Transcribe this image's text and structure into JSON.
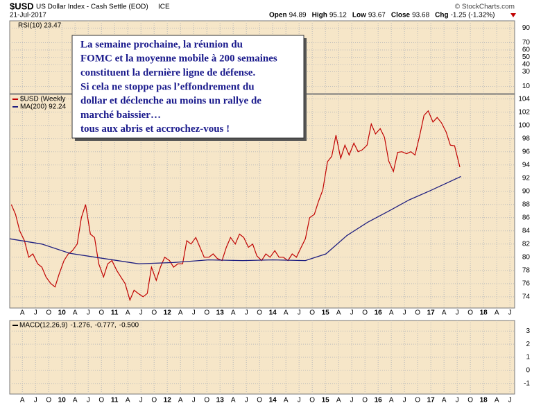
{
  "header": {
    "symbol": "$USD",
    "name": "US Dollar Index - Cash Settle (EOD)",
    "exchange": "ICE",
    "date": "21-Jul-2017",
    "watermark": "© StockCharts.com",
    "quote": [
      {
        "label": "Open",
        "value": 94.89
      },
      {
        "label": "High",
        "value": 95.12
      },
      {
        "label": "Low",
        "value": 93.67
      },
      {
        "label": "Close",
        "value": 93.68
      },
      {
        "label": "Chg",
        "value": "-1.25 (-1.32%)"
      }
    ]
  },
  "rsi": {
    "label": "RSI(10) 23.47",
    "ylim": [
      0,
      100
    ],
    "yticks": [
      10,
      30,
      40,
      50,
      60,
      70,
      90
    ]
  },
  "macd": {
    "labels": [
      {
        "text": "MACD(12,26,9)",
        "color": "#000000"
      },
      {
        "text": "-1.276,",
        "color": "#000000"
      },
      {
        "text": "-0.777,",
        "color": "#cc0000"
      },
      {
        "text": "-0.500",
        "color": "#888888"
      }
    ],
    "ylim": [
      -1.81,
      3.81
    ],
    "yticks": [
      -1,
      0,
      1,
      2,
      3
    ]
  },
  "annotation": [
    "La semaine prochaine, la réunion du",
    "FOMC et la moyenne mobile à 200 semaines",
    "constituent la dernière ligne de défense.",
    "Si cela ne stoppe pas l’effondrement du",
    "dollar et déclenche au moins un rallye de",
    "marché baissier…",
    "tous aux abris et accrochez-vous !"
  ],
  "chart_data": {
    "type": "line",
    "xlim": [
      2009.01,
      2018.59
    ],
    "ylim": [
      72.3,
      104.7
    ],
    "grid": true,
    "yticks": [
      74,
      76,
      78,
      80,
      82,
      84,
      86,
      88,
      90,
      92,
      94,
      96,
      98,
      100,
      102,
      104
    ],
    "xticks": [
      {
        "value": 2009.25,
        "label": "A"
      },
      {
        "value": 2009.5,
        "label": "J"
      },
      {
        "value": 2009.75,
        "label": "O"
      },
      {
        "value": 2010,
        "label": "10"
      },
      {
        "value": 2010.25,
        "label": "A"
      },
      {
        "value": 2010.5,
        "label": "J"
      },
      {
        "value": 2010.75,
        "label": "O"
      },
      {
        "value": 2011,
        "label": "11"
      },
      {
        "value": 2011.25,
        "label": "A"
      },
      {
        "value": 2011.5,
        "label": "J"
      },
      {
        "value": 2011.75,
        "label": "O"
      },
      {
        "value": 2012,
        "label": "12"
      },
      {
        "value": 2012.25,
        "label": "A"
      },
      {
        "value": 2012.5,
        "label": "J"
      },
      {
        "value": 2012.75,
        "label": "O"
      },
      {
        "value": 2013,
        "label": "13"
      },
      {
        "value": 2013.25,
        "label": "A"
      },
      {
        "value": 2013.5,
        "label": "J"
      },
      {
        "value": 2013.75,
        "label": "O"
      },
      {
        "value": 2014,
        "label": "14"
      },
      {
        "value": 2014.25,
        "label": "A"
      },
      {
        "value": 2014.5,
        "label": "J"
      },
      {
        "value": 2014.75,
        "label": "O"
      },
      {
        "value": 2015,
        "label": "15"
      },
      {
        "value": 2015.25,
        "label": "A"
      },
      {
        "value": 2015.5,
        "label": "J"
      },
      {
        "value": 2015.75,
        "label": "O"
      },
      {
        "value": 2016,
        "label": "16"
      },
      {
        "value": 2016.25,
        "label": "A"
      },
      {
        "value": 2016.5,
        "label": "J"
      },
      {
        "value": 2016.75,
        "label": "O"
      },
      {
        "value": 2017,
        "label": "17"
      },
      {
        "value": 2017.25,
        "label": "A"
      },
      {
        "value": 2017.5,
        "label": "J"
      },
      {
        "value": 2017.75,
        "label": "O"
      },
      {
        "value": 2018,
        "label": "18"
      },
      {
        "value": 2018.25,
        "label": "A"
      },
      {
        "value": 2018.5,
        "label": "J"
      }
    ],
    "series": [
      {
        "name": "$USD (Weekly",
        "color": "#c00000",
        "x": [
          2009.04,
          2009.12,
          2009.2,
          2009.29,
          2009.37,
          2009.45,
          2009.54,
          2009.62,
          2009.7,
          2009.79,
          2009.87,
          2009.95,
          2010.04,
          2010.12,
          2010.2,
          2010.29,
          2010.37,
          2010.45,
          2010.54,
          2010.62,
          2010.7,
          2010.79,
          2010.87,
          2010.95,
          2011.04,
          2011.12,
          2011.2,
          2011.29,
          2011.37,
          2011.45,
          2011.54,
          2011.62,
          2011.7,
          2011.79,
          2011.87,
          2011.95,
          2012.04,
          2012.12,
          2012.2,
          2012.29,
          2012.37,
          2012.45,
          2012.54,
          2012.62,
          2012.7,
          2012.79,
          2012.87,
          2012.95,
          2013.04,
          2013.12,
          2013.2,
          2013.29,
          2013.37,
          2013.45,
          2013.54,
          2013.62,
          2013.7,
          2013.79,
          2013.87,
          2013.95,
          2014.04,
          2014.12,
          2014.2,
          2014.29,
          2014.37,
          2014.45,
          2014.54,
          2014.62,
          2014.7,
          2014.79,
          2014.87,
          2014.95,
          2015.04,
          2015.12,
          2015.2,
          2015.29,
          2015.37,
          2015.45,
          2015.54,
          2015.62,
          2015.7,
          2015.79,
          2015.87,
          2015.95,
          2016.04,
          2016.12,
          2016.2,
          2016.29,
          2016.37,
          2016.45,
          2016.54,
          2016.62,
          2016.7,
          2016.79,
          2016.87,
          2016.95,
          2017.04,
          2017.12,
          2017.2,
          2017.29,
          2017.37,
          2017.45,
          2017.55
        ],
        "values": [
          88.0,
          86.5,
          84.0,
          82.5,
          80.0,
          80.5,
          79.0,
          78.5,
          77.0,
          76.0,
          75.5,
          77.5,
          79.5,
          80.5,
          81.0,
          82.0,
          86.0,
          88.0,
          83.5,
          83.0,
          79.0,
          77.0,
          79.0,
          79.5,
          78.0,
          77.0,
          76.0,
          73.5,
          75.0,
          74.5,
          74.0,
          74.5,
          78.5,
          76.5,
          78.5,
          80.0,
          79.5,
          78.5,
          79.0,
          79.0,
          82.5,
          82.0,
          83.0,
          81.5,
          80.0,
          80.0,
          80.5,
          79.8,
          79.5,
          81.5,
          83.0,
          82.0,
          83.5,
          83.0,
          81.5,
          82.0,
          80.2,
          79.5,
          80.5,
          80.0,
          81.0,
          80.0,
          80.0,
          79.5,
          80.5,
          80.0,
          81.5,
          82.8,
          86.0,
          86.5,
          88.5,
          90.2,
          94.5,
          95.3,
          98.5,
          95.0,
          97.0,
          95.5,
          97.3,
          96.0,
          96.3,
          97.0,
          100.2,
          98.7,
          99.5,
          98.2,
          94.6,
          93.0,
          95.9,
          96.0,
          95.7,
          96.0,
          95.5,
          98.5,
          101.5,
          102.2,
          100.5,
          101.2,
          100.4,
          99.0,
          97.0,
          96.9,
          93.68
        ]
      },
      {
        "name": "MA(200) 92.24",
        "color": "#1f1f80",
        "x": [
          2009.01,
          2009.62,
          2010.15,
          2010.8,
          2011.46,
          2012.12,
          2012.78,
          2013.43,
          2014.01,
          2014.62,
          2015.01,
          2015.41,
          2015.8,
          2016.2,
          2016.59,
          2016.99,
          2017.57
        ],
        "values": [
          82.8,
          82.0,
          80.6,
          79.8,
          79.0,
          79.2,
          79.6,
          79.5,
          79.6,
          79.5,
          80.5,
          83.3,
          85.3,
          87.0,
          88.7,
          90.1,
          92.24
        ]
      }
    ]
  }
}
